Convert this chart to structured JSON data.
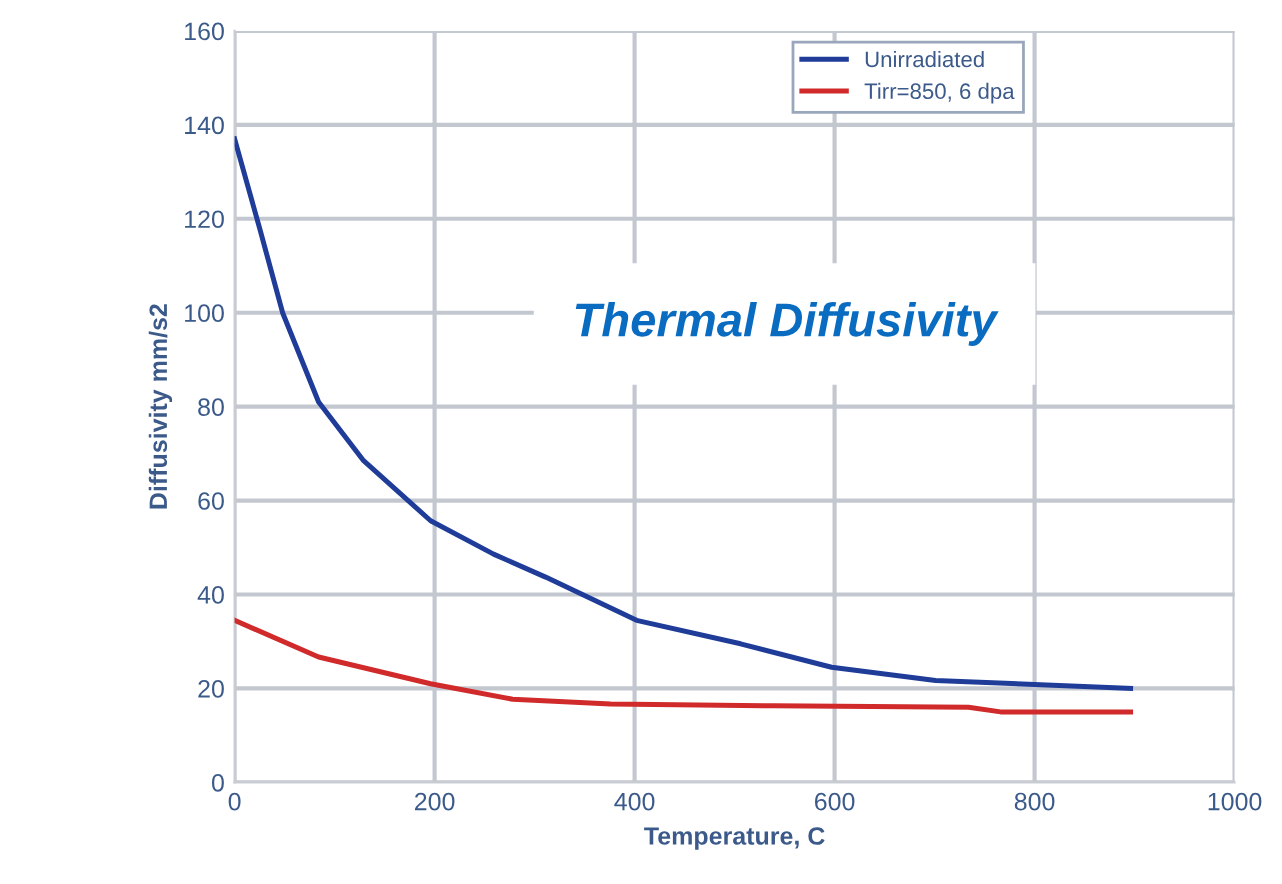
{
  "chart_data": {
    "type": "line",
    "title": "Thermal Diffusivity",
    "xlabel": "Temperature, C",
    "ylabel": "Diffusivity mm/s2",
    "xlim": [
      0,
      1000
    ],
    "xticks": [
      0,
      200,
      400,
      600,
      800,
      1000
    ],
    "ylim": [
      0,
      160
    ],
    "yticks": [
      0,
      20,
      40,
      60,
      80,
      100,
      120,
      140,
      160
    ],
    "grid": true,
    "legend": "top right",
    "marker": "none",
    "line_style": "solid",
    "series": [
      {
        "name": "Unirradiated",
        "color": "#1f3c99",
        "x": [
          0,
          25,
          48,
          84,
          129,
          196,
          259,
          311,
          402,
          506,
          597,
          701,
          896
        ],
        "values": [
          137,
          118,
          100,
          81,
          68.5,
          55.7,
          48.6,
          43.7,
          34.5,
          29.5,
          24.5,
          21.7,
          20
        ]
      },
      {
        "name": "Tirr=850, 6 dpa",
        "color": "#d02a2a",
        "x": [
          0,
          84,
          196,
          278,
          376,
          539,
          734,
          766,
          896
        ],
        "values": [
          34.5,
          26.7,
          21,
          17.7,
          16.7,
          16.3,
          16,
          15,
          15
        ]
      }
    ]
  }
}
